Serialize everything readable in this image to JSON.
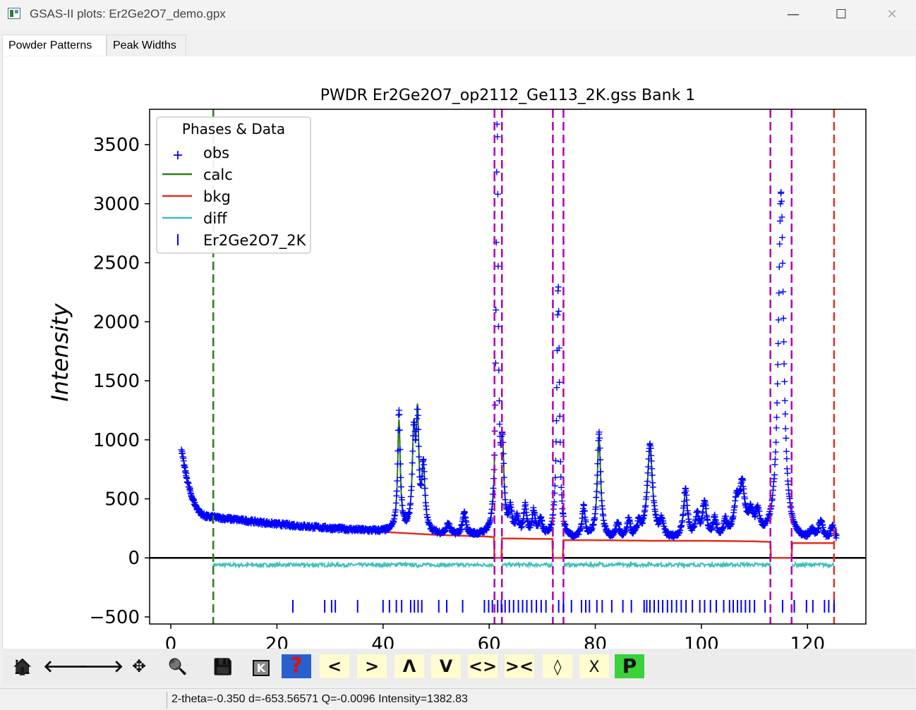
{
  "window": {
    "title": "GSAS-II plots: Er2Ge2O7_demo.gpx",
    "minimize": "—",
    "maximize": "☐",
    "close": "✕"
  },
  "tabs": [
    {
      "label": "Powder Patterns",
      "active": true
    },
    {
      "label": "Peak Widths",
      "active": false
    }
  ],
  "chart_data": {
    "type": "scatter",
    "title": "PWDR Er2Ge2O7_op2112_Ge113_2K.gss Bank 1",
    "xlabel": "",
    "ylabel": "Intensity",
    "xlim": [
      -4,
      131
    ],
    "ylim": [
      -560,
      3800
    ],
    "xticks": [
      0,
      20,
      40,
      60,
      80,
      100,
      120
    ],
    "yticks": [
      -500,
      0,
      500,
      1000,
      1500,
      2000,
      2500,
      3000,
      3500
    ],
    "legend": {
      "title": "Phases & Data",
      "placement": "top-left",
      "entries": [
        {
          "label": "obs",
          "color": "#0000ff",
          "marker": "+"
        },
        {
          "label": "calc",
          "color": "#2e7d1c",
          "marker": "line"
        },
        {
          "label": "bkg",
          "color": "#e03020",
          "marker": "line"
        },
        {
          "label": "diff",
          "color": "#40c0c0",
          "marker": "line"
        },
        {
          "label": "Er2Ge2O7_2K",
          "color": "#0000ff",
          "marker": "tick"
        }
      ]
    },
    "limit_lines": {
      "lower": 8.0,
      "upper": 125.0,
      "lower_color": "#2e7d1c",
      "upper_color": "#e03020"
    },
    "excluded_regions": [
      [
        61.0,
        62.4
      ],
      [
        72.0,
        74.0
      ],
      [
        113.0,
        117.0
      ]
    ],
    "excluded_color": "#b000b0",
    "reflection_ticks_y": -410,
    "reflections": [
      23.0,
      29.0,
      30.3,
      31.0,
      35.2,
      40.0,
      41.2,
      42.5,
      43.5,
      45.2,
      45.9,
      46.6,
      47.3,
      50.5,
      52.0,
      55.0,
      59.1,
      59.9,
      60.6,
      61.6,
      62.3,
      63.0,
      63.8,
      64.6,
      65.5,
      66.3,
      67.1,
      68.0,
      68.9,
      69.8,
      70.7,
      73.1,
      74.0,
      75.5,
      77.4,
      78.2,
      78.9,
      80.3,
      81.3,
      83.1,
      85.2,
      86.8,
      89.2,
      89.7,
      90.3,
      91.1,
      91.9,
      92.7,
      93.6,
      94.4,
      95.3,
      96.2,
      97.1,
      98.3,
      99.7,
      100.6,
      101.7,
      102.8,
      104.2,
      105.3,
      106.0,
      106.8,
      107.5,
      108.3,
      109.1,
      110.0,
      112.0,
      115.3,
      117.5,
      119.8,
      121.0,
      123.2,
      124.0,
      125.0
    ],
    "background": {
      "x": [
        8,
        20,
        30,
        40,
        50,
        60,
        61,
        62.4,
        72,
        74,
        80,
        90,
        100,
        110,
        113,
        117,
        125
      ],
      "y": [
        345,
        285,
        250,
        220,
        195,
        180,
        175,
        165,
        160,
        150,
        150,
        145,
        145,
        140,
        135,
        125,
        125
      ]
    },
    "diff_offset": -60,
    "peaks": [
      {
        "x": 43.0,
        "obs": 1240,
        "calc": 1150,
        "w": 0.3
      },
      {
        "x": 45.8,
        "obs": 1000,
        "calc": 1000,
        "w": 0.35
      },
      {
        "x": 46.5,
        "obs": 1050,
        "calc": 1090,
        "w": 0.3
      },
      {
        "x": 47.6,
        "obs": 750,
        "calc": 720,
        "w": 0.35
      },
      {
        "x": 52.3,
        "obs": 280,
        "calc": 270,
        "w": 0.35
      },
      {
        "x": 55.3,
        "obs": 370,
        "calc": 360,
        "w": 0.35
      },
      {
        "x": 61.5,
        "obs": 3600,
        "calc": 3400,
        "w": 0.25
      },
      {
        "x": 62.5,
        "obs": 850,
        "calc": 850,
        "w": 0.35
      },
      {
        "x": 64.0,
        "obs": 380,
        "calc": 370,
        "w": 0.35
      },
      {
        "x": 65.3,
        "obs": 310,
        "calc": 300,
        "w": 0.35
      },
      {
        "x": 66.8,
        "obs": 420,
        "calc": 410,
        "w": 0.35
      },
      {
        "x": 68.4,
        "obs": 370,
        "calc": 360,
        "w": 0.35
      },
      {
        "x": 69.7,
        "obs": 300,
        "calc": 290,
        "w": 0.35
      },
      {
        "x": 73.0,
        "obs": 2300,
        "calc": 2200,
        "w": 0.3
      },
      {
        "x": 77.8,
        "obs": 410,
        "calc": 400,
        "w": 0.35
      },
      {
        "x": 80.7,
        "obs": 1050,
        "calc": 1000,
        "w": 0.4
      },
      {
        "x": 84.2,
        "obs": 280,
        "calc": 270,
        "w": 0.35
      },
      {
        "x": 86.3,
        "obs": 300,
        "calc": 290,
        "w": 0.35
      },
      {
        "x": 88.2,
        "obs": 270,
        "calc": 260,
        "w": 0.35
      },
      {
        "x": 90.3,
        "obs": 950,
        "calc": 900,
        "w": 0.6
      },
      {
        "x": 92.5,
        "obs": 280,
        "calc": 270,
        "w": 0.4
      },
      {
        "x": 97.0,
        "obs": 560,
        "calc": 540,
        "w": 0.45
      },
      {
        "x": 99.2,
        "obs": 330,
        "calc": 320,
        "w": 0.4
      },
      {
        "x": 100.6,
        "obs": 450,
        "calc": 440,
        "w": 0.45
      },
      {
        "x": 102.5,
        "obs": 300,
        "calc": 290,
        "w": 0.4
      },
      {
        "x": 104.5,
        "obs": 280,
        "calc": 270,
        "w": 0.4
      },
      {
        "x": 106.6,
        "obs": 420,
        "calc": 410,
        "w": 0.6
      },
      {
        "x": 107.7,
        "obs": 550,
        "calc": 530,
        "w": 0.6
      },
      {
        "x": 109.3,
        "obs": 320,
        "calc": 310,
        "w": 0.5
      },
      {
        "x": 110.6,
        "obs": 330,
        "calc": 320,
        "w": 0.5
      },
      {
        "x": 115.0,
        "obs": 3100,
        "calc": 2900,
        "w": 0.6
      },
      {
        "x": 120.8,
        "obs": 200,
        "calc": 190,
        "w": 0.5
      },
      {
        "x": 122.5,
        "obs": 290,
        "calc": 280,
        "w": 0.5
      },
      {
        "x": 124.7,
        "obs": 240,
        "calc": 230,
        "w": 0.5
      }
    ],
    "low_angle_rise": {
      "x_start": 2.0,
      "x_end": 8.0,
      "y_start": 920,
      "y_end": 345
    }
  },
  "toolbar": [
    {
      "name": "home-icon",
      "glyph": "🏠"
    },
    {
      "name": "back-arrow-icon",
      "glyph": "🡐"
    },
    {
      "name": "forward-arrow-icon",
      "glyph": "🡒"
    },
    {
      "name": "pan-icon",
      "glyph": "✥"
    },
    {
      "name": "zoom-icon",
      "glyph": "🔍"
    },
    {
      "name": "save-icon",
      "glyph": "💾"
    },
    {
      "name": "keyboard-icon",
      "glyph": "K"
    },
    {
      "name": "help-icon",
      "glyph": "?"
    },
    {
      "name": "shift-left-icon",
      "glyph": "<"
    },
    {
      "name": "shift-right-icon",
      "glyph": ">"
    },
    {
      "name": "shift-up-icon",
      "glyph": "Λ"
    },
    {
      "name": "shift-down-icon",
      "glyph": "V"
    },
    {
      "name": "expand-x-icon",
      "glyph": "<>"
    },
    {
      "name": "shrink-x-icon",
      "glyph": "><"
    },
    {
      "name": "expand-y-icon",
      "glyph": "◊"
    },
    {
      "name": "shrink-y-icon",
      "glyph": "X"
    },
    {
      "name": "publish-icon",
      "glyph": "P"
    }
  ],
  "status": {
    "text": "2-theta=-0.350 d=-653.56571 Q=-0.0096 Intensity=1382.83"
  }
}
